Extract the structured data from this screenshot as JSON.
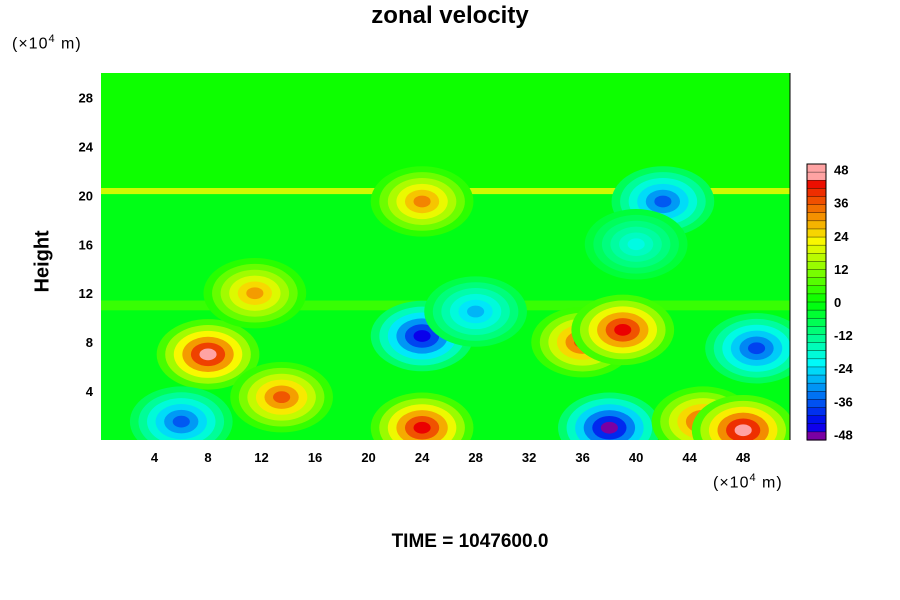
{
  "chart_data": {
    "type": "heatmap",
    "title": "zonal velocity",
    "ylabel": "Height",
    "y_units_label": "(×10",
    "y_units_exp": "4",
    "y_units_unit": " m)",
    "x_units_label": "(×10",
    "x_units_exp": "4",
    "x_units_unit": " m)",
    "xlim": [
      0,
      51.5
    ],
    "ylim": [
      0,
      30
    ],
    "x_ticks": [
      "4",
      "8",
      "12",
      "16",
      "20",
      "24",
      "28",
      "32",
      "36",
      "40",
      "44",
      "48"
    ],
    "y_ticks": [
      "4",
      "8",
      "12",
      "16",
      "20",
      "24",
      "28"
    ],
    "colorbar": {
      "min": -50,
      "max": 50,
      "ticks": [
        "48",
        "36",
        "24",
        "12",
        "0",
        "-12",
        "-24",
        "-36",
        "-48"
      ]
    },
    "features": [
      {
        "x": 8,
        "y": 7,
        "value": 46
      },
      {
        "x": 13.5,
        "y": 3.5,
        "value": 36
      },
      {
        "x": 11.5,
        "y": 12,
        "value": 30
      },
      {
        "x": 24,
        "y": 8.5,
        "value": -45
      },
      {
        "x": 36,
        "y": 8,
        "value": 38
      },
      {
        "x": 39,
        "y": 9,
        "value": 44
      },
      {
        "x": 49,
        "y": 7.5,
        "value": -38
      },
      {
        "x": 24,
        "y": 1,
        "value": 44
      },
      {
        "x": 38,
        "y": 1,
        "value": -48
      },
      {
        "x": 45,
        "y": 1.5,
        "value": 38
      },
      {
        "x": 48,
        "y": 0.8,
        "value": 48
      },
      {
        "x": 42,
        "y": 19.5,
        "value": -36
      },
      {
        "x": 24,
        "y": 19.5,
        "value": 32
      },
      {
        "x": 40,
        "y": 16,
        "value": -20
      },
      {
        "x": 6,
        "y": 1.5,
        "value": -36
      },
      {
        "x": 28,
        "y": 10.5,
        "value": -28
      }
    ],
    "footer": "TIME = 1047600.0"
  }
}
